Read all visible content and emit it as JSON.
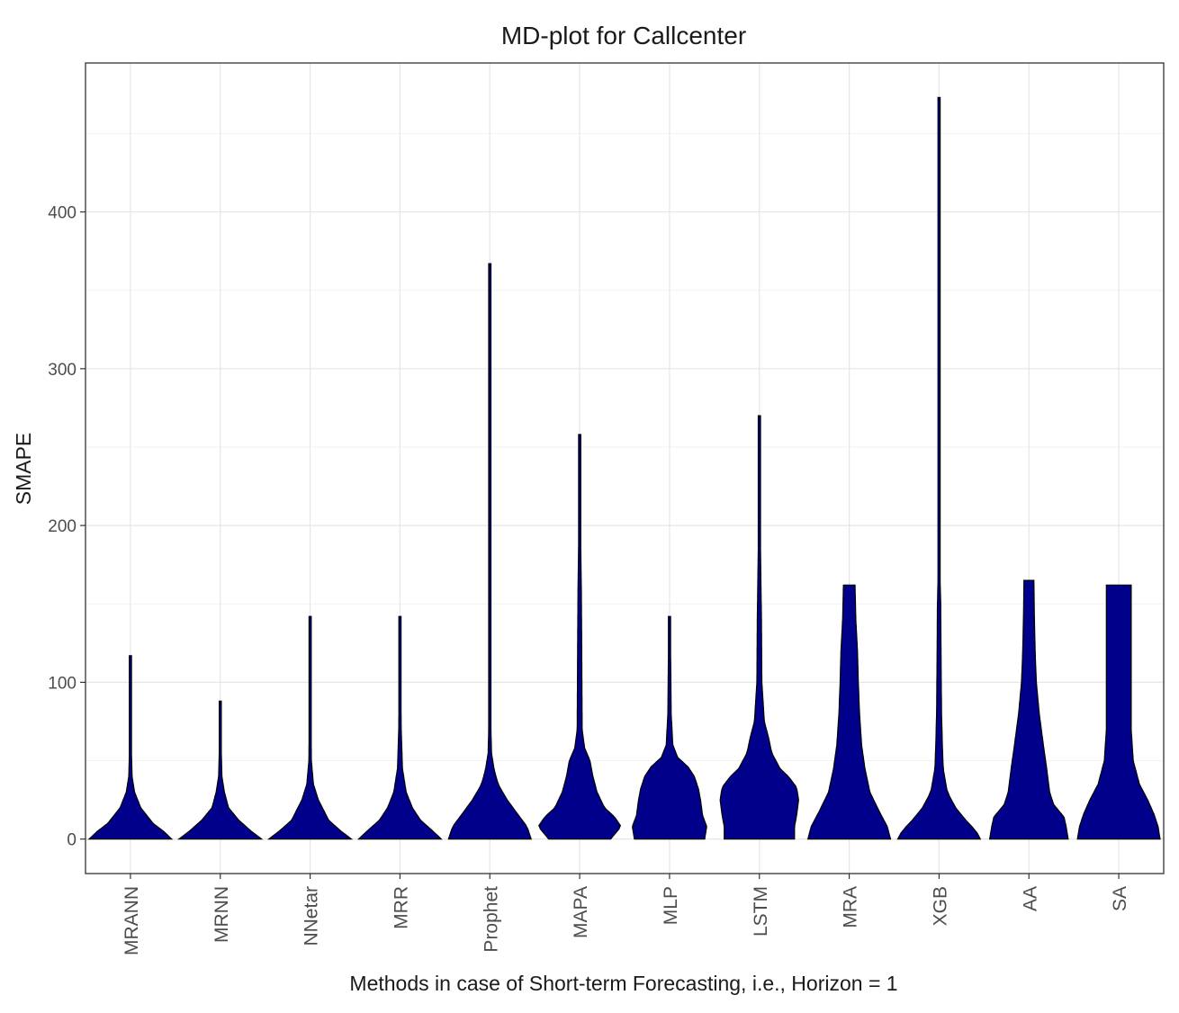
{
  "chart_data": {
    "type": "violin",
    "title": "MD-plot for Callcenter",
    "xlabel": "Methods in case of Short-term Forecasting, i.e., Horizon = 1",
    "ylabel": "SMAPE",
    "ylim": [
      -22,
      495
    ],
    "yticks": [
      0,
      100,
      200,
      300,
      400
    ],
    "grid": true,
    "fill_color": "#00008b",
    "categories": [
      "MRANN",
      "MRNN",
      "NNetar",
      "MRR",
      "Prophet",
      "MAPA",
      "MLP",
      "LSTM",
      "MRA",
      "XGB",
      "AA",
      "SA"
    ],
    "series": [
      {
        "name": "MRANN",
        "max": 117,
        "profile": [
          [
            0,
            1.0
          ],
          [
            5,
            0.8
          ],
          [
            10,
            0.55
          ],
          [
            20,
            0.25
          ],
          [
            30,
            0.1
          ],
          [
            40,
            0.04
          ],
          [
            60,
            0.02
          ],
          [
            80,
            0.02
          ],
          [
            117,
            0.01
          ]
        ]
      },
      {
        "name": "MRNN",
        "max": 88,
        "profile": [
          [
            0,
            1.0
          ],
          [
            5,
            0.75
          ],
          [
            12,
            0.45
          ],
          [
            20,
            0.2
          ],
          [
            30,
            0.1
          ],
          [
            40,
            0.04
          ],
          [
            60,
            0.02
          ],
          [
            88,
            0.01
          ]
        ]
      },
      {
        "name": "NNetar",
        "max": 142,
        "profile": [
          [
            0,
            1.0
          ],
          [
            5,
            0.75
          ],
          [
            12,
            0.45
          ],
          [
            25,
            0.2
          ],
          [
            35,
            0.08
          ],
          [
            50,
            0.03
          ],
          [
            80,
            0.02
          ],
          [
            142,
            0.01
          ]
        ]
      },
      {
        "name": "MRR",
        "max": 142,
        "profile": [
          [
            0,
            1.0
          ],
          [
            5,
            0.8
          ],
          [
            12,
            0.5
          ],
          [
            20,
            0.3
          ],
          [
            30,
            0.15
          ],
          [
            45,
            0.06
          ],
          [
            70,
            0.03
          ],
          [
            100,
            0.02
          ],
          [
            142,
            0.01
          ]
        ]
      },
      {
        "name": "Prophet",
        "max": 367,
        "profile": [
          [
            0,
            1.0
          ],
          [
            8,
            0.9
          ],
          [
            15,
            0.7
          ],
          [
            25,
            0.42
          ],
          [
            35,
            0.2
          ],
          [
            45,
            0.1
          ],
          [
            55,
            0.04
          ],
          [
            80,
            0.02
          ],
          [
            200,
            0.015
          ],
          [
            300,
            0.015
          ],
          [
            367,
            0.015
          ]
        ]
      },
      {
        "name": "MAPA",
        "max": 258,
        "profile": [
          [
            0,
            0.75
          ],
          [
            8,
            1.0
          ],
          [
            14,
            0.85
          ],
          [
            20,
            0.6
          ],
          [
            30,
            0.42
          ],
          [
            40,
            0.32
          ],
          [
            50,
            0.25
          ],
          [
            58,
            0.12
          ],
          [
            70,
            0.06
          ],
          [
            120,
            0.05
          ],
          [
            160,
            0.04
          ],
          [
            200,
            0.02
          ],
          [
            258,
            0.01
          ]
        ]
      },
      {
        "name": "MLP",
        "max": 142,
        "profile": [
          [
            0,
            0.85
          ],
          [
            8,
            0.9
          ],
          [
            15,
            0.8
          ],
          [
            25,
            0.75
          ],
          [
            32,
            0.7
          ],
          [
            40,
            0.6
          ],
          [
            46,
            0.45
          ],
          [
            52,
            0.2
          ],
          [
            60,
            0.08
          ],
          [
            80,
            0.04
          ],
          [
            110,
            0.03
          ],
          [
            142,
            0.01
          ]
        ]
      },
      {
        "name": "LSTM",
        "max": 270,
        "profile": [
          [
            0,
            0.85
          ],
          [
            8,
            0.85
          ],
          [
            15,
            0.9
          ],
          [
            25,
            0.95
          ],
          [
            33,
            0.9
          ],
          [
            40,
            0.7
          ],
          [
            45,
            0.5
          ],
          [
            55,
            0.3
          ],
          [
            65,
            0.22
          ],
          [
            75,
            0.12
          ],
          [
            100,
            0.06
          ],
          [
            140,
            0.05
          ],
          [
            200,
            0.02
          ],
          [
            270,
            0.01
          ]
        ]
      },
      {
        "name": "MRA",
        "max": 162,
        "profile": [
          [
            0,
            1.0
          ],
          [
            8,
            0.92
          ],
          [
            18,
            0.72
          ],
          [
            30,
            0.5
          ],
          [
            45,
            0.38
          ],
          [
            60,
            0.3
          ],
          [
            80,
            0.25
          ],
          [
            100,
            0.22
          ],
          [
            120,
            0.2
          ],
          [
            140,
            0.16
          ],
          [
            162,
            0.14
          ]
        ]
      },
      {
        "name": "XGB",
        "max": 473,
        "profile": [
          [
            0,
            1.0
          ],
          [
            5,
            0.9
          ],
          [
            12,
            0.65
          ],
          [
            20,
            0.4
          ],
          [
            30,
            0.2
          ],
          [
            45,
            0.1
          ],
          [
            60,
            0.08
          ],
          [
            80,
            0.06
          ],
          [
            110,
            0.05
          ],
          [
            150,
            0.04
          ],
          [
            170,
            0.02
          ],
          [
            200,
            0.015
          ],
          [
            300,
            0.015
          ],
          [
            473,
            0.01
          ]
        ]
      },
      {
        "name": "AA",
        "max": 165,
        "profile": [
          [
            0,
            0.95
          ],
          [
            8,
            0.9
          ],
          [
            14,
            0.85
          ],
          [
            22,
            0.6
          ],
          [
            30,
            0.5
          ],
          [
            45,
            0.43
          ],
          [
            60,
            0.35
          ],
          [
            80,
            0.25
          ],
          [
            100,
            0.18
          ],
          [
            120,
            0.15
          ],
          [
            145,
            0.13
          ],
          [
            165,
            0.12
          ]
        ]
      },
      {
        "name": "SA",
        "max": 162,
        "profile": [
          [
            0,
            1.0
          ],
          [
            8,
            0.95
          ],
          [
            16,
            0.85
          ],
          [
            25,
            0.7
          ],
          [
            35,
            0.5
          ],
          [
            50,
            0.35
          ],
          [
            70,
            0.3
          ],
          [
            90,
            0.3
          ],
          [
            120,
            0.3
          ],
          [
            140,
            0.3
          ],
          [
            162,
            0.3
          ]
        ]
      }
    ]
  }
}
